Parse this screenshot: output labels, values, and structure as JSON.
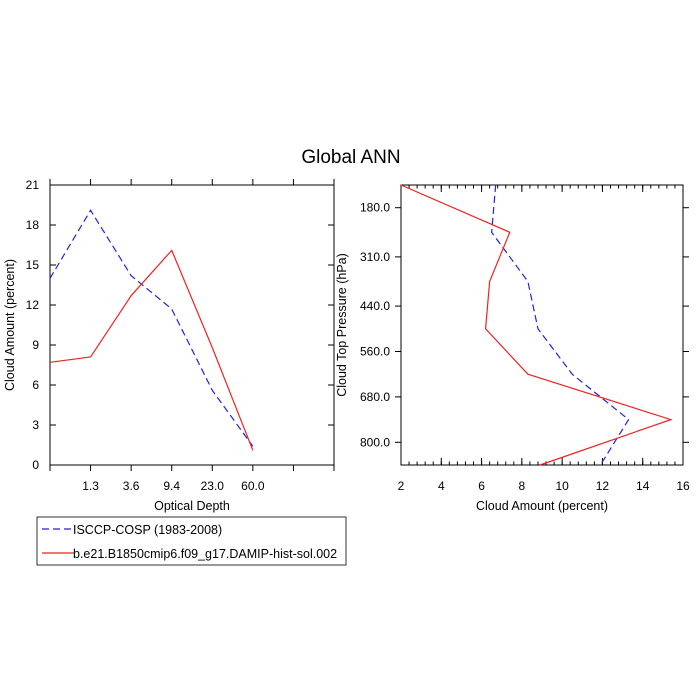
{
  "title": "Global ANN",
  "colors": {
    "observation": "#2222dd",
    "model": "#ee2222",
    "axis": "#000000"
  },
  "chart_data": [
    {
      "type": "line",
      "xlabel": "Optical Depth",
      "ylabel": "Cloud Amount (percent)",
      "x_tick_labels": [
        "1.3",
        "3.6",
        "9.4",
        "23.0",
        "60.0"
      ],
      "y_ticks": [
        "0",
        "3",
        "6",
        "9",
        "12",
        "15",
        "18",
        "21"
      ],
      "ylim": [
        0,
        21
      ],
      "x_bins": 7,
      "series": [
        {
          "name": "ISCCP-COSP (1983-2008)",
          "style": "dashed",
          "x": [
            0,
            1,
            2,
            3,
            4,
            5,
            6
          ],
          "values": [
            14.0,
            19.1,
            14.2,
            11.7,
            5.6,
            1.4,
            null
          ]
        },
        {
          "name": "b.e21.B1850cmip6.f09_g17.DAMIP-hist-sol.002",
          "style": "solid",
          "x": [
            0,
            1,
            2,
            3,
            4,
            5
          ],
          "values": [
            7.7,
            8.1,
            12.7,
            16.1,
            8.8,
            1.1
          ]
        }
      ]
    },
    {
      "type": "line",
      "xlabel": "Cloud Amount (percent)",
      "ylabel": "Cloud Top Pressure (hPa)",
      "x_ticks": [
        "2",
        "4",
        "6",
        "8",
        "10",
        "12",
        "14",
        "16"
      ],
      "xlim": [
        2,
        16
      ],
      "y_tick_labels": [
        "180.0",
        "310.0",
        "440.0",
        "560.0",
        "680.0",
        "800.0"
      ],
      "pressure_levels": [
        180,
        310,
        440,
        560,
        680,
        800
      ],
      "series": [
        {
          "name": "ISCCP-COSP (1983-2008)",
          "style": "dashed",
          "pressure": [
            120,
            245,
            375,
            500,
            620,
            740,
            860
          ],
          "values": [
            6.7,
            6.5,
            8.3,
            8.8,
            10.5,
            13.3,
            11.9
          ]
        },
        {
          "name": "b.e21.B1850cmip6.f09_g17.DAMIP-hist-sol.002",
          "style": "solid",
          "pressure": [
            120,
            245,
            375,
            500,
            620,
            740,
            860
          ],
          "values": [
            2.0,
            7.4,
            6.4,
            6.2,
            8.3,
            15.4,
            8.9
          ]
        }
      ]
    }
  ],
  "legend": [
    {
      "label": "ISCCP-COSP (1983-2008)",
      "style": "dashed"
    },
    {
      "label": "b.e21.B1850cmip6.f09_g17.DAMIP-hist-sol.002",
      "style": "solid"
    }
  ]
}
